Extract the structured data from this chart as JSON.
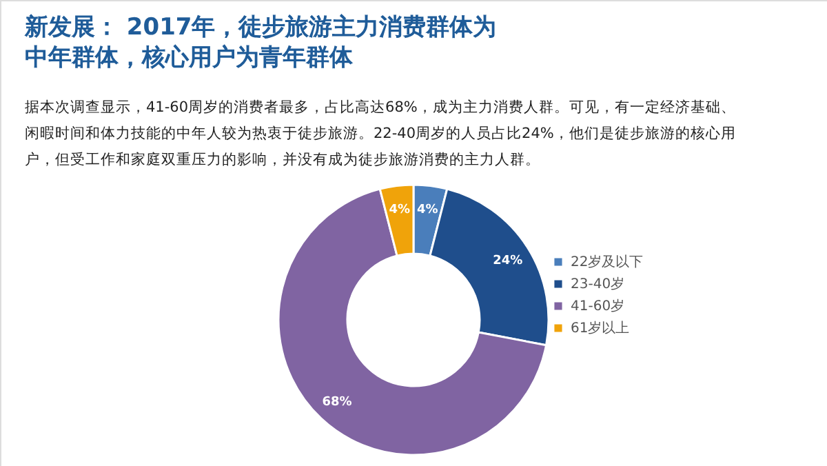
{
  "chart_data": {
    "type": "donut",
    "title": "新发展： 2017年，徒步旅游主力消费群体为中年群体，核心用户为青年群体",
    "annotations": [
      "据本次调查显示，41-60周岁的消费者最多，占比高达68%，成为主力消费人群。可见，有一定经济基础、闲暇时间和体力技能的中年人较为热衷于徒步旅游。22-40周岁的人员占比24%，他们是徒步旅游的核心用户，但受工作和家庭双重压力的影响，并没有成为徒步旅游消费的主力人群。"
    ],
    "categories": [
      "22岁及以下",
      "23-40岁",
      "41-60岁",
      "61岁以上"
    ],
    "values": [
      4,
      24,
      68,
      4
    ],
    "colors": [
      "#4a7ebb",
      "#1f4e8c",
      "#8064a2",
      "#f0a30a"
    ],
    "value_labels": [
      "4%",
      "24%",
      "68%",
      "4%"
    ],
    "legend": "right"
  }
}
